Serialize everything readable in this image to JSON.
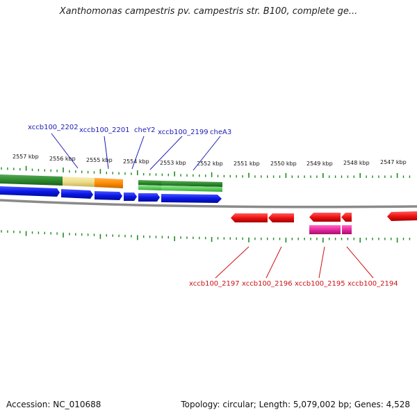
{
  "title": "Xanthomonas campestris pv. campestris str. B100, complete ge...",
  "footer": {
    "accession": "Accession: NC_010688",
    "summary": "Topology: circular; Length: 5,079,002 bp; Genes: 4,528"
  },
  "colors": {
    "forward_cds": "#0a18e6",
    "reverse_cds": "#ee1111",
    "reverse_rna": "#e8289e",
    "feature_green": "#2e8b2e",
    "feature_light_green": "#5fcf5f",
    "feature_khaki": "#eedd8a",
    "feature_orange": "#ff8c00",
    "backbone": "#808080",
    "ticks": "#1f8a1f",
    "forward_labels": "#1a1ab4",
    "reverse_labels": "#cc1111"
  },
  "scale_labels": [
    "2557 kbp",
    "2556 kbp",
    "2555 kbp",
    "2554 kbp",
    "2553 kbp",
    "2552 kbp",
    "2551 kbp",
    "2550 kbp",
    "2549 kbp",
    "2548 kbp",
    "2547 kbp"
  ],
  "forward_gene_labels": [
    "xccb100_2202",
    "xccb100_2201",
    "cheY2",
    "xccb100_2199",
    "cheA3"
  ],
  "reverse_gene_labels": [
    "xccb100_2197",
    "xccb100_2196",
    "xccb100_2195",
    "xccb100_2194"
  ]
}
